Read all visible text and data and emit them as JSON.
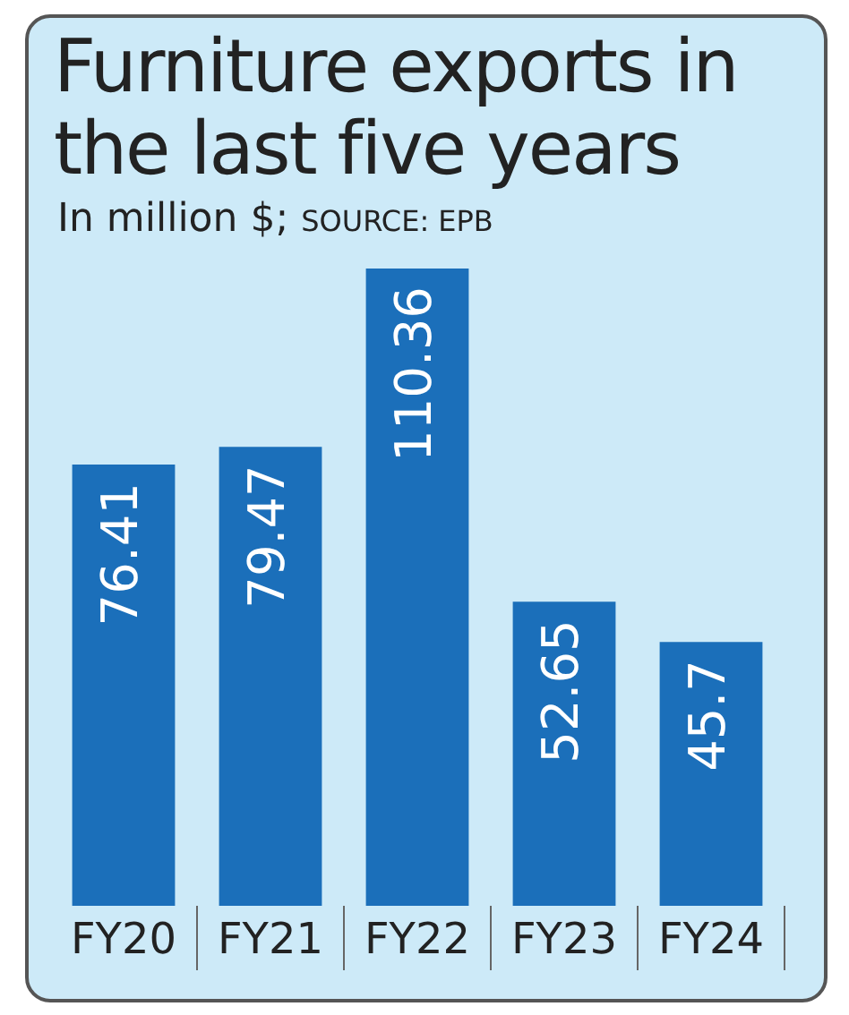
{
  "chart_data": {
    "type": "bar",
    "title": "Furniture exports in the last five years",
    "subtitle": "In million $;",
    "annotations": [
      "SOURCE: EPB"
    ],
    "categories": [
      "FY20",
      "FY21",
      "FY22",
      "FY23",
      "FY24"
    ],
    "values": [
      76.41,
      79.47,
      110.36,
      52.65,
      45.7
    ],
    "color": "#1b6fba",
    "ylim": [
      0,
      110.36
    ],
    "data_labels": true,
    "tick_labels": "x",
    "grid": false,
    "legend": false
  }
}
